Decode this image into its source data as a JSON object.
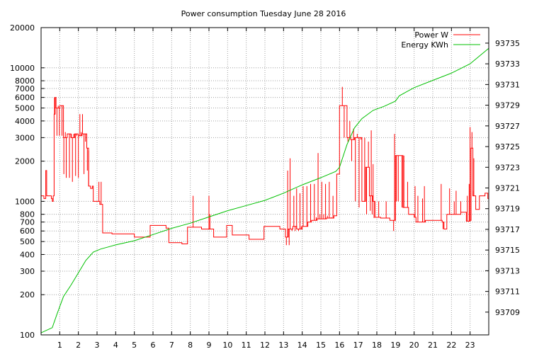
{
  "chart_data": {
    "type": "line",
    "title": "Power consumption Tuesday June 28 2016",
    "x": {
      "label": "",
      "range": [
        0,
        24
      ],
      "ticks": [
        1,
        2,
        3,
        4,
        5,
        6,
        7,
        8,
        9,
        10,
        11,
        12,
        13,
        14,
        15,
        16,
        17,
        18,
        19,
        20,
        21,
        22,
        23
      ],
      "grid": true
    },
    "y_left": {
      "label": "",
      "scale": "log",
      "range": [
        100,
        20000
      ],
      "ticks": [
        100,
        200,
        300,
        400,
        500,
        600,
        700,
        800,
        1000,
        2000,
        3000,
        4000,
        5000,
        6000,
        7000,
        8000,
        10000,
        20000
      ],
      "grid": true
    },
    "y_right": {
      "label": "",
      "scale": "linear",
      "range": [
        93706.8,
        93736.5
      ],
      "ticks": [
        93709,
        93711,
        93713,
        93715,
        93717,
        93719,
        93721,
        93723,
        93725,
        93727,
        93729,
        93731,
        93733,
        93735
      ]
    },
    "legend": {
      "position": "top-right"
    },
    "series": [
      {
        "name": "Power W",
        "axis": "left",
        "color": "#ff0000",
        "baseline": [
          [
            0.0,
            1100
          ],
          [
            0.15,
            1050
          ],
          [
            0.25,
            1700
          ],
          [
            0.3,
            1100
          ],
          [
            0.55,
            1050
          ],
          [
            0.6,
            1000
          ],
          [
            0.65,
            1100
          ],
          [
            0.7,
            4500
          ],
          [
            0.75,
            6000
          ],
          [
            0.8,
            5000
          ],
          [
            1.0,
            5200
          ],
          [
            1.2,
            3000
          ],
          [
            1.4,
            3200
          ],
          [
            1.6,
            3000
          ],
          [
            1.8,
            3200
          ],
          [
            2.0,
            3100
          ],
          [
            2.2,
            3200
          ],
          [
            2.45,
            2500
          ],
          [
            2.55,
            1300
          ],
          [
            2.65,
            1250
          ],
          [
            2.75,
            1300
          ],
          [
            2.8,
            1000
          ],
          [
            3.15,
            950
          ],
          [
            3.3,
            580
          ],
          [
            3.8,
            570
          ],
          [
            4.0,
            570
          ],
          [
            4.9,
            570
          ],
          [
            5.0,
            540
          ],
          [
            5.8,
            540
          ],
          [
            5.85,
            660
          ],
          [
            6.6,
            660
          ],
          [
            6.7,
            630
          ],
          [
            6.85,
            490
          ],
          [
            7.5,
            490
          ],
          [
            7.55,
            480
          ],
          [
            7.8,
            480
          ],
          [
            7.85,
            640
          ],
          [
            8.5,
            640
          ],
          [
            8.6,
            620
          ],
          [
            9.0,
            620
          ],
          [
            9.25,
            540
          ],
          [
            9.9,
            540
          ],
          [
            9.95,
            660
          ],
          [
            10.15,
            660
          ],
          [
            10.25,
            560
          ],
          [
            10.7,
            560
          ],
          [
            11.0,
            560
          ],
          [
            11.15,
            520
          ],
          [
            11.9,
            520
          ],
          [
            11.95,
            650
          ],
          [
            12.6,
            650
          ],
          [
            12.8,
            620
          ],
          [
            13.0,
            620
          ],
          [
            13.1,
            540
          ],
          [
            13.25,
            620
          ],
          [
            13.5,
            650
          ],
          [
            13.7,
            620
          ],
          [
            14.0,
            650
          ],
          [
            14.3,
            700
          ],
          [
            14.5,
            720
          ],
          [
            14.8,
            740
          ],
          [
            15.0,
            740
          ],
          [
            15.3,
            750
          ],
          [
            15.7,
            780
          ],
          [
            15.85,
            1600
          ],
          [
            16.0,
            5200
          ],
          [
            16.2,
            5200
          ],
          [
            16.4,
            3000
          ],
          [
            16.6,
            2900
          ],
          [
            16.8,
            3000
          ],
          [
            17.0,
            3000
          ],
          [
            17.2,
            1000
          ],
          [
            17.4,
            1800
          ],
          [
            17.6,
            1100
          ],
          [
            17.8,
            1000
          ],
          [
            17.9,
            760
          ],
          [
            18.2,
            750
          ],
          [
            18.4,
            750
          ],
          [
            18.7,
            720
          ],
          [
            19.0,
            2200
          ],
          [
            19.2,
            2200
          ],
          [
            19.4,
            900
          ],
          [
            19.7,
            800
          ],
          [
            20.0,
            760
          ],
          [
            20.1,
            700
          ],
          [
            20.4,
            700
          ],
          [
            20.6,
            720
          ],
          [
            21.0,
            720
          ],
          [
            21.5,
            700
          ],
          [
            21.6,
            620
          ],
          [
            21.75,
            800
          ],
          [
            22.2,
            800
          ],
          [
            22.5,
            830
          ],
          [
            22.8,
            710
          ],
          [
            23.0,
            720
          ],
          [
            23.05,
            2500
          ],
          [
            23.15,
            1100
          ],
          [
            23.3,
            870
          ],
          [
            23.5,
            1100
          ],
          [
            23.8,
            1150
          ],
          [
            23.95,
            1050
          ],
          [
            24.0,
            2000
          ]
        ],
        "spikes": [
          [
            0.72,
            6000
          ],
          [
            0.78,
            6000
          ],
          [
            0.85,
            3100
          ],
          [
            0.92,
            5200
          ],
          [
            0.98,
            3100
          ],
          [
            1.05,
            5200
          ],
          [
            1.12,
            3100
          ],
          [
            1.18,
            5200
          ],
          [
            1.22,
            1600
          ],
          [
            1.3,
            3300
          ],
          [
            1.35,
            1500
          ],
          [
            1.45,
            3200
          ],
          [
            1.52,
            1500
          ],
          [
            1.62,
            3200
          ],
          [
            1.68,
            1400
          ],
          [
            1.75,
            3200
          ],
          [
            1.85,
            1550
          ],
          [
            1.92,
            3100
          ],
          [
            2.0,
            1500
          ],
          [
            2.08,
            4500
          ],
          [
            2.15,
            3300
          ],
          [
            2.22,
            4500
          ],
          [
            2.3,
            1600
          ],
          [
            2.38,
            2800
          ],
          [
            2.48,
            1700
          ],
          [
            2.55,
            2400
          ],
          [
            3.1,
            1400
          ],
          [
            3.22,
            1400
          ],
          [
            3.3,
            580
          ],
          [
            7.6,
            480
          ],
          [
            8.15,
            1100
          ],
          [
            9.0,
            1100
          ],
          [
            9.05,
            800
          ],
          [
            13.15,
            470
          ],
          [
            13.22,
            1700
          ],
          [
            13.3,
            470
          ],
          [
            13.35,
            2100
          ],
          [
            13.45,
            600
          ],
          [
            13.55,
            1100
          ],
          [
            13.62,
            600
          ],
          [
            13.7,
            1250
          ],
          [
            13.8,
            600
          ],
          [
            13.88,
            1150
          ],
          [
            13.95,
            650
          ],
          [
            14.05,
            1300
          ],
          [
            14.15,
            650
          ],
          [
            14.25,
            1300
          ],
          [
            14.35,
            700
          ],
          [
            14.45,
            1350
          ],
          [
            14.55,
            720
          ],
          [
            14.65,
            1350
          ],
          [
            14.75,
            760
          ],
          [
            14.85,
            2300
          ],
          [
            14.95,
            800
          ],
          [
            15.05,
            1400
          ],
          [
            15.15,
            800
          ],
          [
            15.25,
            1350
          ],
          [
            15.35,
            780
          ],
          [
            15.45,
            1400
          ],
          [
            15.55,
            760
          ],
          [
            15.65,
            1100
          ],
          [
            16.15,
            7200
          ],
          [
            16.25,
            3000
          ],
          [
            16.35,
            5200
          ],
          [
            16.45,
            2800
          ],
          [
            16.55,
            4000
          ],
          [
            16.65,
            2000
          ],
          [
            16.75,
            3500
          ],
          [
            16.85,
            1000
          ],
          [
            16.95,
            3200
          ],
          [
            17.05,
            900
          ],
          [
            17.15,
            2900
          ],
          [
            17.25,
            1000
          ],
          [
            17.35,
            3000
          ],
          [
            17.45,
            800
          ],
          [
            17.55,
            2800
          ],
          [
            17.65,
            850
          ],
          [
            17.7,
            3400
          ],
          [
            17.75,
            800
          ],
          [
            17.8,
            1900
          ],
          [
            17.85,
            750
          ],
          [
            18.1,
            1000
          ],
          [
            18.5,
            1000
          ],
          [
            18.9,
            600
          ],
          [
            18.95,
            3200
          ],
          [
            19.05,
            1000
          ],
          [
            19.1,
            2200
          ],
          [
            19.15,
            1000
          ],
          [
            19.25,
            2200
          ],
          [
            19.35,
            900
          ],
          [
            19.45,
            2200
          ],
          [
            19.55,
            900
          ],
          [
            19.65,
            1400
          ],
          [
            20.05,
            1300
          ],
          [
            20.2,
            1100
          ],
          [
            20.45,
            1050
          ],
          [
            20.55,
            1300
          ],
          [
            21.45,
            1350
          ],
          [
            21.55,
            620
          ],
          [
            21.9,
            1250
          ],
          [
            22.15,
            1000
          ],
          [
            22.25,
            1200
          ],
          [
            22.5,
            1000
          ],
          [
            22.85,
            1100
          ],
          [
            22.95,
            1350
          ],
          [
            23.0,
            3600
          ],
          [
            23.05,
            1200
          ],
          [
            23.1,
            3300
          ],
          [
            23.15,
            1200
          ],
          [
            23.2,
            2100
          ]
        ]
      },
      {
        "name": "Energy KWh",
        "axis": "right",
        "color": "#00c000",
        "points": [
          [
            0.0,
            93707.0
          ],
          [
            0.6,
            93707.5
          ],
          [
            0.85,
            93708.8
          ],
          [
            1.2,
            93710.5
          ],
          [
            1.6,
            93711.6
          ],
          [
            2.0,
            93712.8
          ],
          [
            2.4,
            93714.0
          ],
          [
            2.8,
            93714.8
          ],
          [
            3.2,
            93715.1
          ],
          [
            3.6,
            93715.3
          ],
          [
            4.0,
            93715.5
          ],
          [
            5.0,
            93715.9
          ],
          [
            6.0,
            93716.5
          ],
          [
            7.0,
            93717.1
          ],
          [
            8.0,
            93717.6
          ],
          [
            9.0,
            93718.2
          ],
          [
            10.0,
            93718.8
          ],
          [
            11.0,
            93719.3
          ],
          [
            12.0,
            93719.8
          ],
          [
            13.0,
            93720.5
          ],
          [
            14.0,
            93721.3
          ],
          [
            15.0,
            93722.0
          ],
          [
            15.8,
            93722.6
          ],
          [
            16.0,
            93723.0
          ],
          [
            16.4,
            93725.2
          ],
          [
            16.8,
            93726.8
          ],
          [
            17.2,
            93727.7
          ],
          [
            17.8,
            93728.5
          ],
          [
            18.4,
            93728.9
          ],
          [
            19.0,
            93729.4
          ],
          [
            19.2,
            93729.9
          ],
          [
            19.6,
            93730.3
          ],
          [
            20.0,
            93730.7
          ],
          [
            21.0,
            93731.4
          ],
          [
            22.0,
            93732.1
          ],
          [
            23.0,
            93733.0
          ],
          [
            23.2,
            93733.3
          ],
          [
            24.0,
            93734.5
          ]
        ]
      }
    ]
  }
}
